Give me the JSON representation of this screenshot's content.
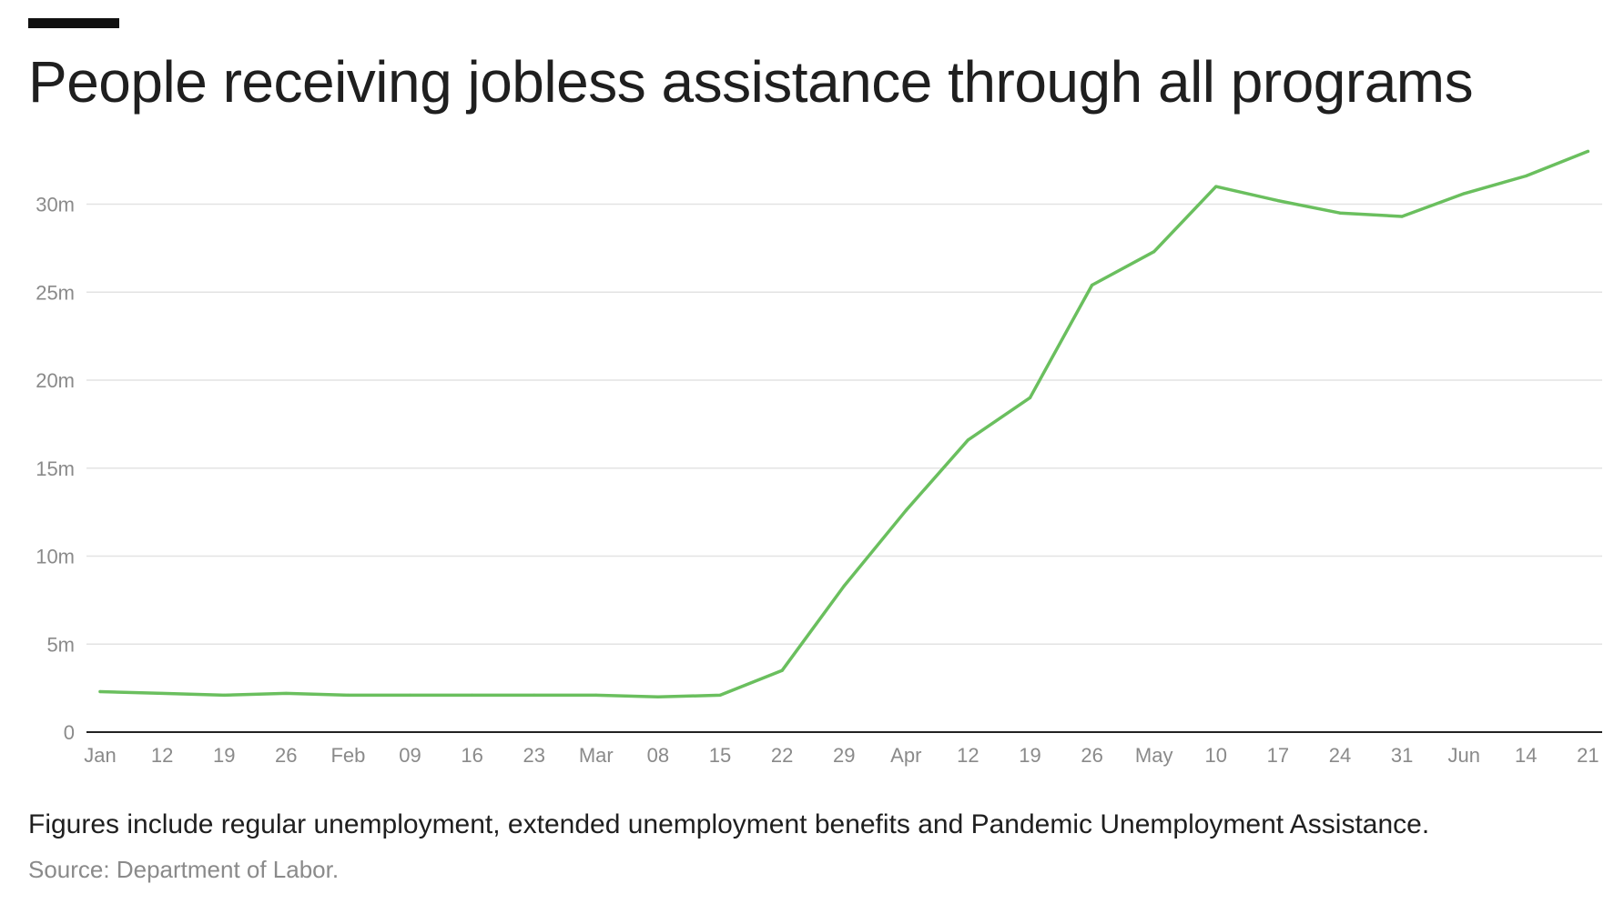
{
  "title": "People receiving jobless assistance through all programs",
  "note": "Figures include regular unemployment, extended unemployment benefits and Pandemic Unemployment Assistance.",
  "source": "Source: Department of Labor.",
  "colors": {
    "line": "#6abf5e",
    "grid": "#e3e3e3",
    "axis": "#222222",
    "tick_text": "#8a8a8a",
    "accent_bar": "#111111"
  },
  "chart_data": {
    "type": "line",
    "title": "People receiving jobless assistance through all programs",
    "xlabel": "",
    "ylabel": "",
    "grid": true,
    "legend": "none",
    "categories": [
      "Jan",
      "12",
      "19",
      "26",
      "Feb",
      "09",
      "16",
      "23",
      "Mar",
      "08",
      "15",
      "22",
      "29",
      "Apr",
      "12",
      "19",
      "26",
      "May",
      "10",
      "17",
      "24",
      "31",
      "Jun",
      "14",
      "21"
    ],
    "x_tick_labels": [
      "Jan",
      "12",
      "19",
      "26",
      "Feb",
      "09",
      "16",
      "23",
      "Mar",
      "08",
      "15",
      "22",
      "29",
      "Apr",
      "12",
      "19",
      "26",
      "May",
      "10",
      "17",
      "24",
      "31",
      "Jun",
      "14",
      "21"
    ],
    "y_ticks": [
      0,
      5,
      10,
      15,
      20,
      25,
      30
    ],
    "y_tick_labels": [
      "0",
      "5m",
      "10m",
      "15m",
      "20m",
      "25m",
      "30m"
    ],
    "ylim": [
      0,
      33
    ],
    "series": [
      {
        "values": [
          2.3,
          2.2,
          2.1,
          2.2,
          2.1,
          2.1,
          2.1,
          2.1,
          2.1,
          2.0,
          2.1,
          3.5,
          8.3,
          12.6,
          16.6,
          19.0,
          25.4,
          27.3,
          31.0,
          30.2,
          29.5,
          29.3,
          30.6,
          31.6,
          33.0
        ]
      }
    ]
  }
}
